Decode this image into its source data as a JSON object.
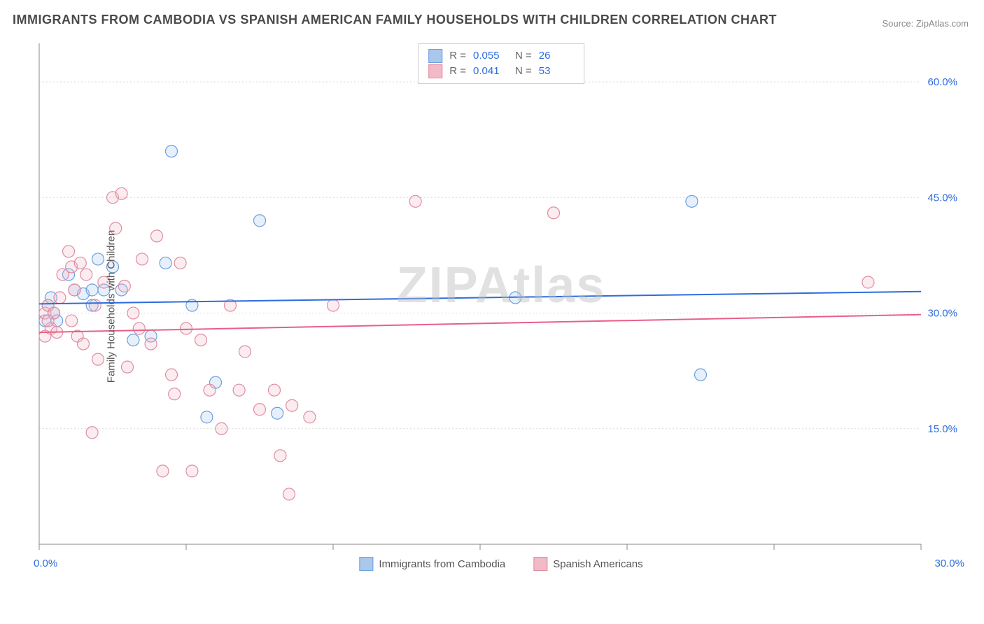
{
  "title": "IMMIGRANTS FROM CAMBODIA VS SPANISH AMERICAN FAMILY HOUSEHOLDS WITH CHILDREN CORRELATION CHART",
  "source": "Source: ZipAtlas.com",
  "watermark": "ZIPAtlas",
  "chart": {
    "type": "scatter",
    "ylabel": "Family Households with Children",
    "xlim": [
      0,
      30
    ],
    "ylim": [
      0,
      65
    ],
    "x_tick_step": 5,
    "y_ticks": [
      15,
      30,
      45,
      60
    ],
    "y_tick_labels": [
      "15.0%",
      "30.0%",
      "45.0%",
      "60.0%"
    ],
    "x_min_label": "0.0%",
    "x_max_label": "30.0%",
    "background_color": "#ffffff",
    "grid_color": "#d8d8d8",
    "axis_color": "#888888",
    "tick_label_color": "#2d6cdf",
    "marker_radius": 8.5,
    "marker_stroke_width": 1.2,
    "marker_fill_opacity": 0.28,
    "line_width": 2,
    "series": [
      {
        "name": "Immigrants from Cambodia",
        "color_stroke": "#6a9fe0",
        "color_fill": "#a9c8ec",
        "color_line": "#2d6cdf",
        "R": "0.055",
        "N": "26",
        "trend": {
          "y_at_xmin": 31.2,
          "y_at_xmax": 32.8
        },
        "points": [
          {
            "x": 0.3,
            "y": 31
          },
          {
            "x": 0.5,
            "y": 30
          },
          {
            "x": 0.6,
            "y": 29
          },
          {
            "x": 1.0,
            "y": 35
          },
          {
            "x": 1.2,
            "y": 33
          },
          {
            "x": 1.5,
            "y": 32.5
          },
          {
            "x": 1.8,
            "y": 33
          },
          {
            "x": 2.0,
            "y": 37
          },
          {
            "x": 2.2,
            "y": 33
          },
          {
            "x": 2.8,
            "y": 33
          },
          {
            "x": 3.2,
            "y": 26.5
          },
          {
            "x": 3.8,
            "y": 27
          },
          {
            "x": 4.3,
            "y": 36.5
          },
          {
            "x": 4.5,
            "y": 51
          },
          {
            "x": 5.2,
            "y": 31
          },
          {
            "x": 5.7,
            "y": 16.5
          },
          {
            "x": 6.0,
            "y": 21
          },
          {
            "x": 7.5,
            "y": 42
          },
          {
            "x": 8.1,
            "y": 17
          },
          {
            "x": 16.2,
            "y": 32
          },
          {
            "x": 22.2,
            "y": 44.5
          },
          {
            "x": 22.5,
            "y": 22
          },
          {
            "x": 1.8,
            "y": 31
          },
          {
            "x": 0.2,
            "y": 29
          },
          {
            "x": 0.4,
            "y": 32
          },
          {
            "x": 2.5,
            "y": 36
          }
        ]
      },
      {
        "name": "Spanish Americans",
        "color_stroke": "#e08ca3",
        "color_fill": "#f2b9c7",
        "color_line": "#e85f87",
        "R": "0.041",
        "N": "53",
        "trend": {
          "y_at_xmin": 27.5,
          "y_at_xmax": 29.8
        },
        "points": [
          {
            "x": 0.2,
            "y": 30
          },
          {
            "x": 0.2,
            "y": 27
          },
          {
            "x": 0.3,
            "y": 31
          },
          {
            "x": 0.4,
            "y": 28
          },
          {
            "x": 0.5,
            "y": 30
          },
          {
            "x": 0.6,
            "y": 27.5
          },
          {
            "x": 0.8,
            "y": 35
          },
          {
            "x": 1.0,
            "y": 38
          },
          {
            "x": 1.1,
            "y": 36
          },
          {
            "x": 1.2,
            "y": 33
          },
          {
            "x": 1.3,
            "y": 27
          },
          {
            "x": 1.4,
            "y": 36.5
          },
          {
            "x": 1.5,
            "y": 26
          },
          {
            "x": 1.6,
            "y": 35
          },
          {
            "x": 1.8,
            "y": 14.5
          },
          {
            "x": 2.0,
            "y": 24
          },
          {
            "x": 2.2,
            "y": 34
          },
          {
            "x": 2.5,
            "y": 45
          },
          {
            "x": 2.6,
            "y": 41
          },
          {
            "x": 2.8,
            "y": 45.5
          },
          {
            "x": 2.9,
            "y": 33.5
          },
          {
            "x": 3.0,
            "y": 23
          },
          {
            "x": 3.2,
            "y": 30
          },
          {
            "x": 3.5,
            "y": 37
          },
          {
            "x": 3.8,
            "y": 26
          },
          {
            "x": 4.0,
            "y": 40
          },
          {
            "x": 4.2,
            "y": 9.5
          },
          {
            "x": 4.5,
            "y": 22
          },
          {
            "x": 4.6,
            "y": 19.5
          },
          {
            "x": 4.8,
            "y": 36.5
          },
          {
            "x": 5.0,
            "y": 28
          },
          {
            "x": 5.2,
            "y": 9.5
          },
          {
            "x": 5.5,
            "y": 26.5
          },
          {
            "x": 5.8,
            "y": 20
          },
          {
            "x": 6.2,
            "y": 15
          },
          {
            "x": 6.5,
            "y": 31
          },
          {
            "x": 6.8,
            "y": 20
          },
          {
            "x": 7.0,
            "y": 25
          },
          {
            "x": 7.5,
            "y": 17.5
          },
          {
            "x": 8.0,
            "y": 20
          },
          {
            "x": 8.2,
            "y": 11.5
          },
          {
            "x": 8.5,
            "y": 6.5
          },
          {
            "x": 8.6,
            "y": 18
          },
          {
            "x": 9.2,
            "y": 16.5
          },
          {
            "x": 10.0,
            "y": 31
          },
          {
            "x": 12.8,
            "y": 44.5
          },
          {
            "x": 17.5,
            "y": 43
          },
          {
            "x": 28.2,
            "y": 34
          },
          {
            "x": 0.3,
            "y": 29
          },
          {
            "x": 0.7,
            "y": 32
          },
          {
            "x": 1.1,
            "y": 29
          },
          {
            "x": 1.9,
            "y": 31
          },
          {
            "x": 3.4,
            "y": 28
          }
        ]
      }
    ]
  },
  "legend_bottom": [
    {
      "label": "Immigrants from Cambodia",
      "swatch_fill": "#a9c8ec",
      "swatch_stroke": "#6a9fe0"
    },
    {
      "label": "Spanish Americans",
      "swatch_fill": "#f2b9c7",
      "swatch_stroke": "#e08ca3"
    }
  ]
}
